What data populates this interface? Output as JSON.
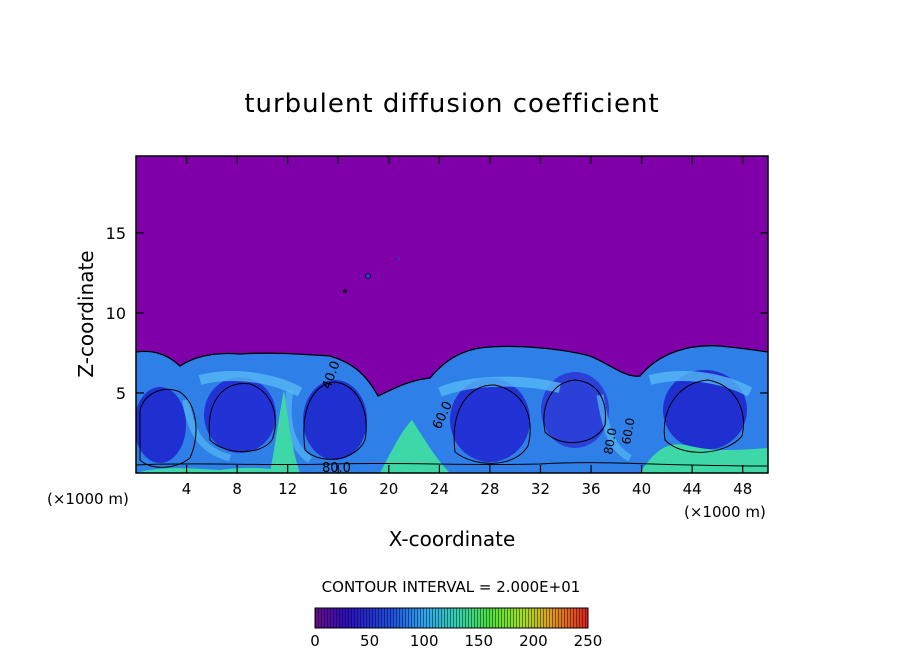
{
  "chart_data": {
    "type": "heatmap",
    "title": "turbulent diffusion coefficient",
    "xlabel": "X-coordinate",
    "ylabel": "Z-coordinate",
    "x_unit_left": "(×1000 m)",
    "x_unit_right": "(×1000 m)",
    "xlim": [
      0,
      50
    ],
    "ylim": [
      0,
      19.8
    ],
    "xticks": [
      "4",
      "8",
      "12",
      "16",
      "20",
      "24",
      "28",
      "32",
      "36",
      "40",
      "44",
      "48"
    ],
    "xtick_values": [
      4,
      8,
      12,
      16,
      20,
      24,
      28,
      32,
      36,
      40,
      44,
      48
    ],
    "yticks": [
      "5",
      "10",
      "15"
    ],
    "ytick_values": [
      5,
      10,
      15
    ],
    "contour_interval_text": "CONTOUR INTERVAL = 2.000E+01",
    "contour_interval": 20,
    "contour_labels": [
      "40.0",
      "60.0",
      "80.0",
      "80.0",
      "60.0"
    ],
    "colorbar": {
      "min": 0,
      "max": 250,
      "ticks": [
        "0",
        "50",
        "100",
        "150",
        "200",
        "250"
      ],
      "tick_values": [
        0,
        50,
        100,
        150,
        200,
        250
      ]
    },
    "background_value": 0,
    "colors": {
      "background": "#7f00a8",
      "low": "#1f2fd8",
      "mid": "#3aa0f0",
      "high": "#3fe0a0",
      "contour": "#000000"
    }
  }
}
